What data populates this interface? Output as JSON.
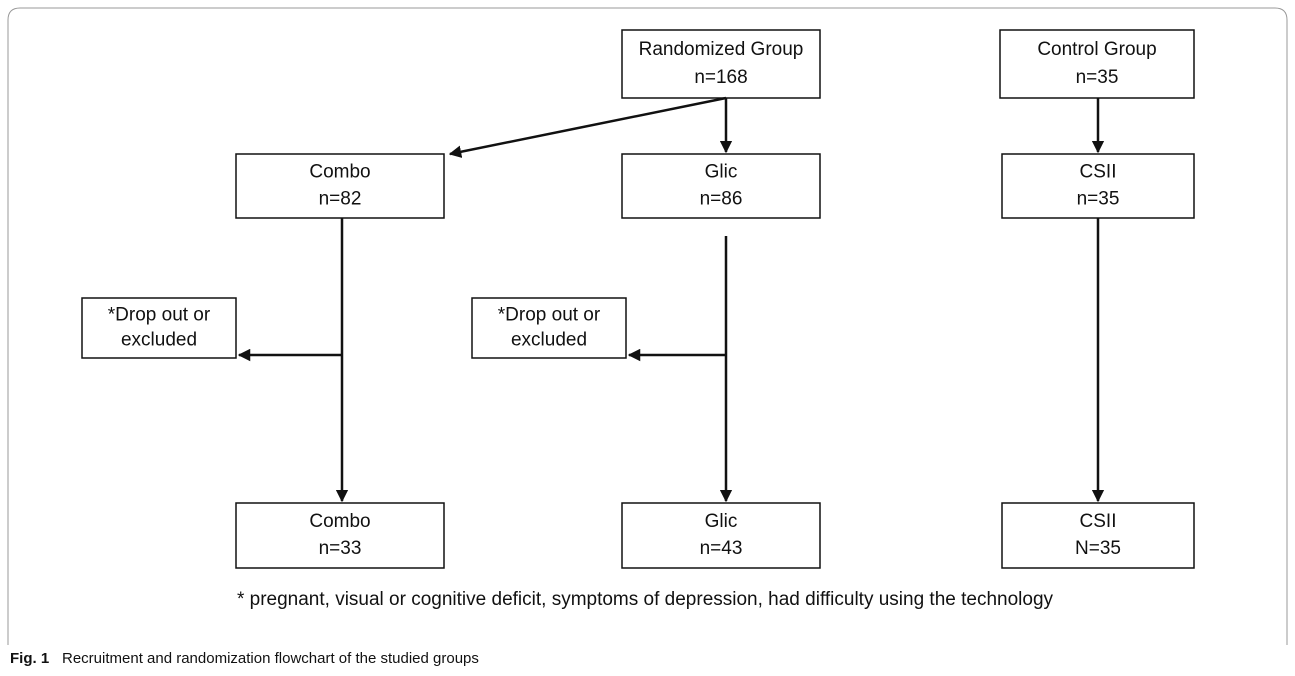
{
  "nodes": [
    {
      "lines": [
        "Randomized Group",
        "n=168"
      ]
    },
    {
      "lines": [
        "Control Group",
        "n=35"
      ]
    },
    {
      "lines": [
        "Combo",
        "n=82"
      ]
    },
    {
      "lines": [
        "Glic",
        "n=86"
      ]
    },
    {
      "lines": [
        "CSII",
        "n=35"
      ]
    },
    {
      "lines": [
        "*Drop out or",
        "excluded"
      ]
    },
    {
      "lines": [
        "*Drop out or",
        "excluded"
      ]
    },
    {
      "lines": [
        "Combo",
        "n=33"
      ]
    },
    {
      "lines": [
        "Glic",
        "n=43"
      ]
    },
    {
      "lines": [
        "CSII",
        "N=35"
      ]
    }
  ],
  "footnote": "* pregnant, visual or cognitive deficit, symptoms of depression, had difficulty using the technology",
  "caption": {
    "label": "Fig. 1",
    "text": "Recruitment and randomization flowchart of the studied groups"
  }
}
